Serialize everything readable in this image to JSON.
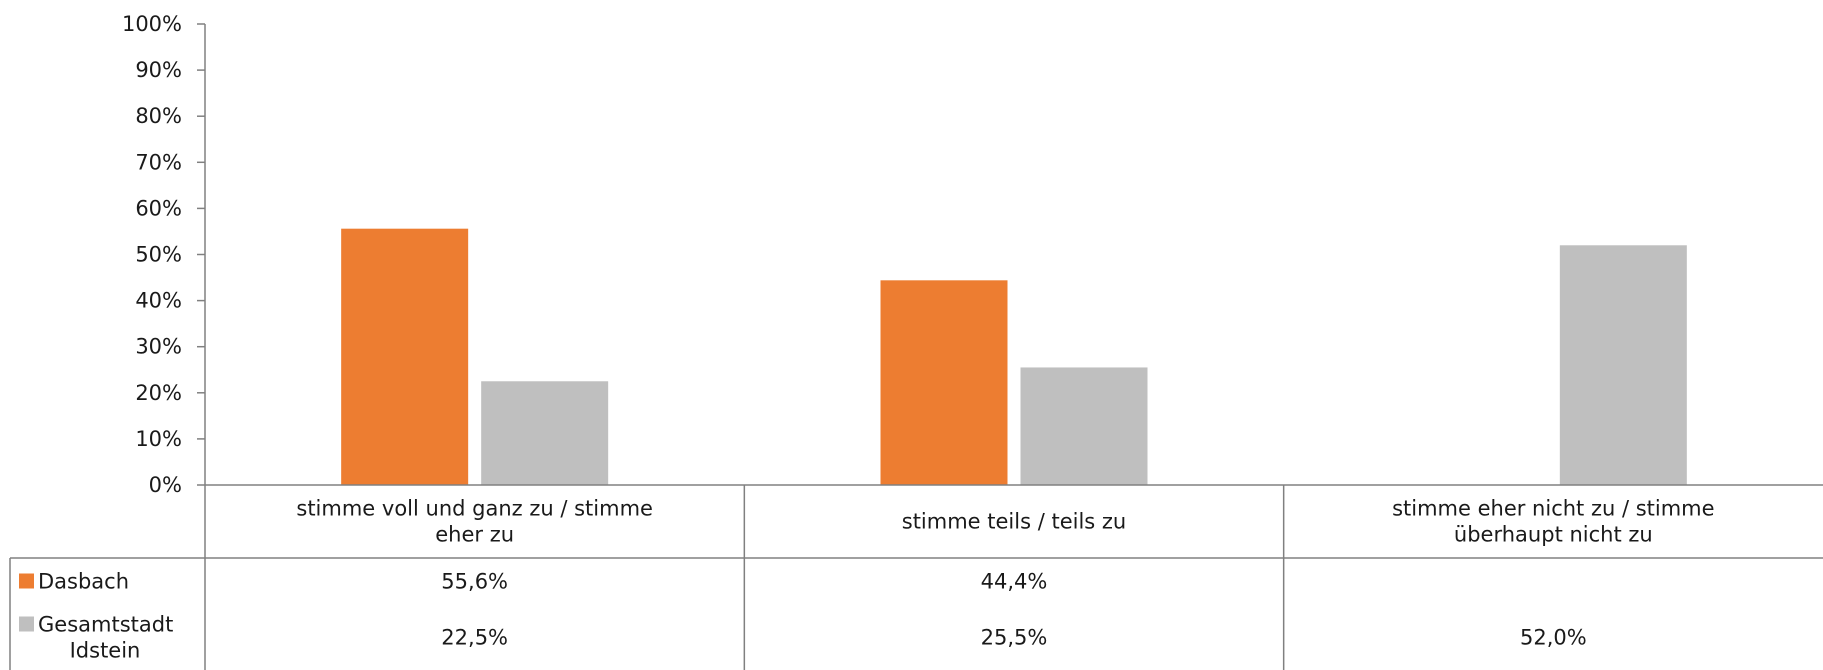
{
  "chart_data": {
    "type": "bar",
    "categories": [
      [
        "stimme voll und ganz zu / stimme",
        "eher zu"
      ],
      [
        "stimme teils / teils zu"
      ],
      [
        "stimme eher nicht zu / stimme",
        "überhaupt nicht zu"
      ]
    ],
    "series": [
      {
        "name": [
          "Dasbach"
        ],
        "color": "#ED7D31",
        "values": [
          55.6,
          44.4,
          null
        ],
        "labels": [
          "55,6%",
          "44,4%",
          ""
        ]
      },
      {
        "name": [
          "Gesamtstadt",
          "Idstein"
        ],
        "color": "#BFBFBF",
        "values": [
          22.5,
          25.5,
          52.0
        ],
        "labels": [
          "22,5%",
          "25,5%",
          "52,0%"
        ]
      }
    ],
    "ylim": [
      0,
      100
    ],
    "yticks": [
      "0%",
      "10%",
      "20%",
      "30%",
      "40%",
      "50%",
      "60%",
      "70%",
      "80%",
      "90%",
      "100%"
    ],
    "legend": "data-table",
    "grid": false
  }
}
